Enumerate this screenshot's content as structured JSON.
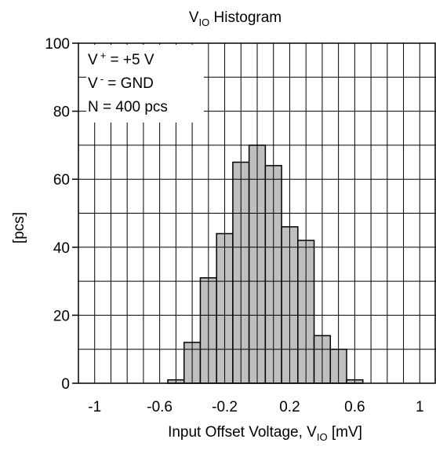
{
  "chart_data": {
    "type": "bar",
    "title": {
      "main": "V",
      "sub": "IO",
      "suffix": " Histogram"
    },
    "xlabel": {
      "main": "Input Offset Voltage, V",
      "sub": "IO",
      "suffix": " [mV]"
    },
    "ylabel": "[pcs]",
    "xlim": [
      -1.1,
      1.1
    ],
    "ylim": [
      0,
      100
    ],
    "x_ticks": [
      {
        "value": -1.0,
        "label": "-1"
      },
      {
        "value": -0.6,
        "label": "-0.6"
      },
      {
        "value": -0.2,
        "label": "-0.2"
      },
      {
        "value": 0.2,
        "label": "0.2"
      },
      {
        "value": 0.6,
        "label": "0.6"
      },
      {
        "value": 1.0,
        "label": "1"
      }
    ],
    "y_ticks": [
      {
        "value": 0,
        "label": "0"
      },
      {
        "value": 20,
        "label": "20"
      },
      {
        "value": 40,
        "label": "40"
      },
      {
        "value": 60,
        "label": "60"
      },
      {
        "value": 80,
        "label": "80"
      },
      {
        "value": 100,
        "label": "100"
      }
    ],
    "bin_width": 0.1,
    "bins": [
      {
        "center": -0.5,
        "value": 1
      },
      {
        "center": -0.4,
        "value": 12
      },
      {
        "center": -0.3,
        "value": 31
      },
      {
        "center": -0.2,
        "value": 44
      },
      {
        "center": -0.1,
        "value": 65
      },
      {
        "center": 0.0,
        "value": 70
      },
      {
        "center": 0.1,
        "value": 64
      },
      {
        "center": 0.2,
        "value": 46
      },
      {
        "center": 0.3,
        "value": 42
      },
      {
        "center": 0.4,
        "value": 14
      },
      {
        "center": 0.5,
        "value": 10
      },
      {
        "center": 0.6,
        "value": 1
      }
    ],
    "annotation": {
      "line1": {
        "pre": "V",
        "sup": "+",
        "post": " = +5 V"
      },
      "line2": {
        "pre": "V",
        "sup": "-",
        "post": " = GND"
      },
      "line3": "N = 400 pcs"
    },
    "grid": true,
    "colors": {
      "bar_fill": "#bfbfbf",
      "bar_stroke": "#000000",
      "grid": "#000000",
      "frame": "#000000"
    }
  }
}
